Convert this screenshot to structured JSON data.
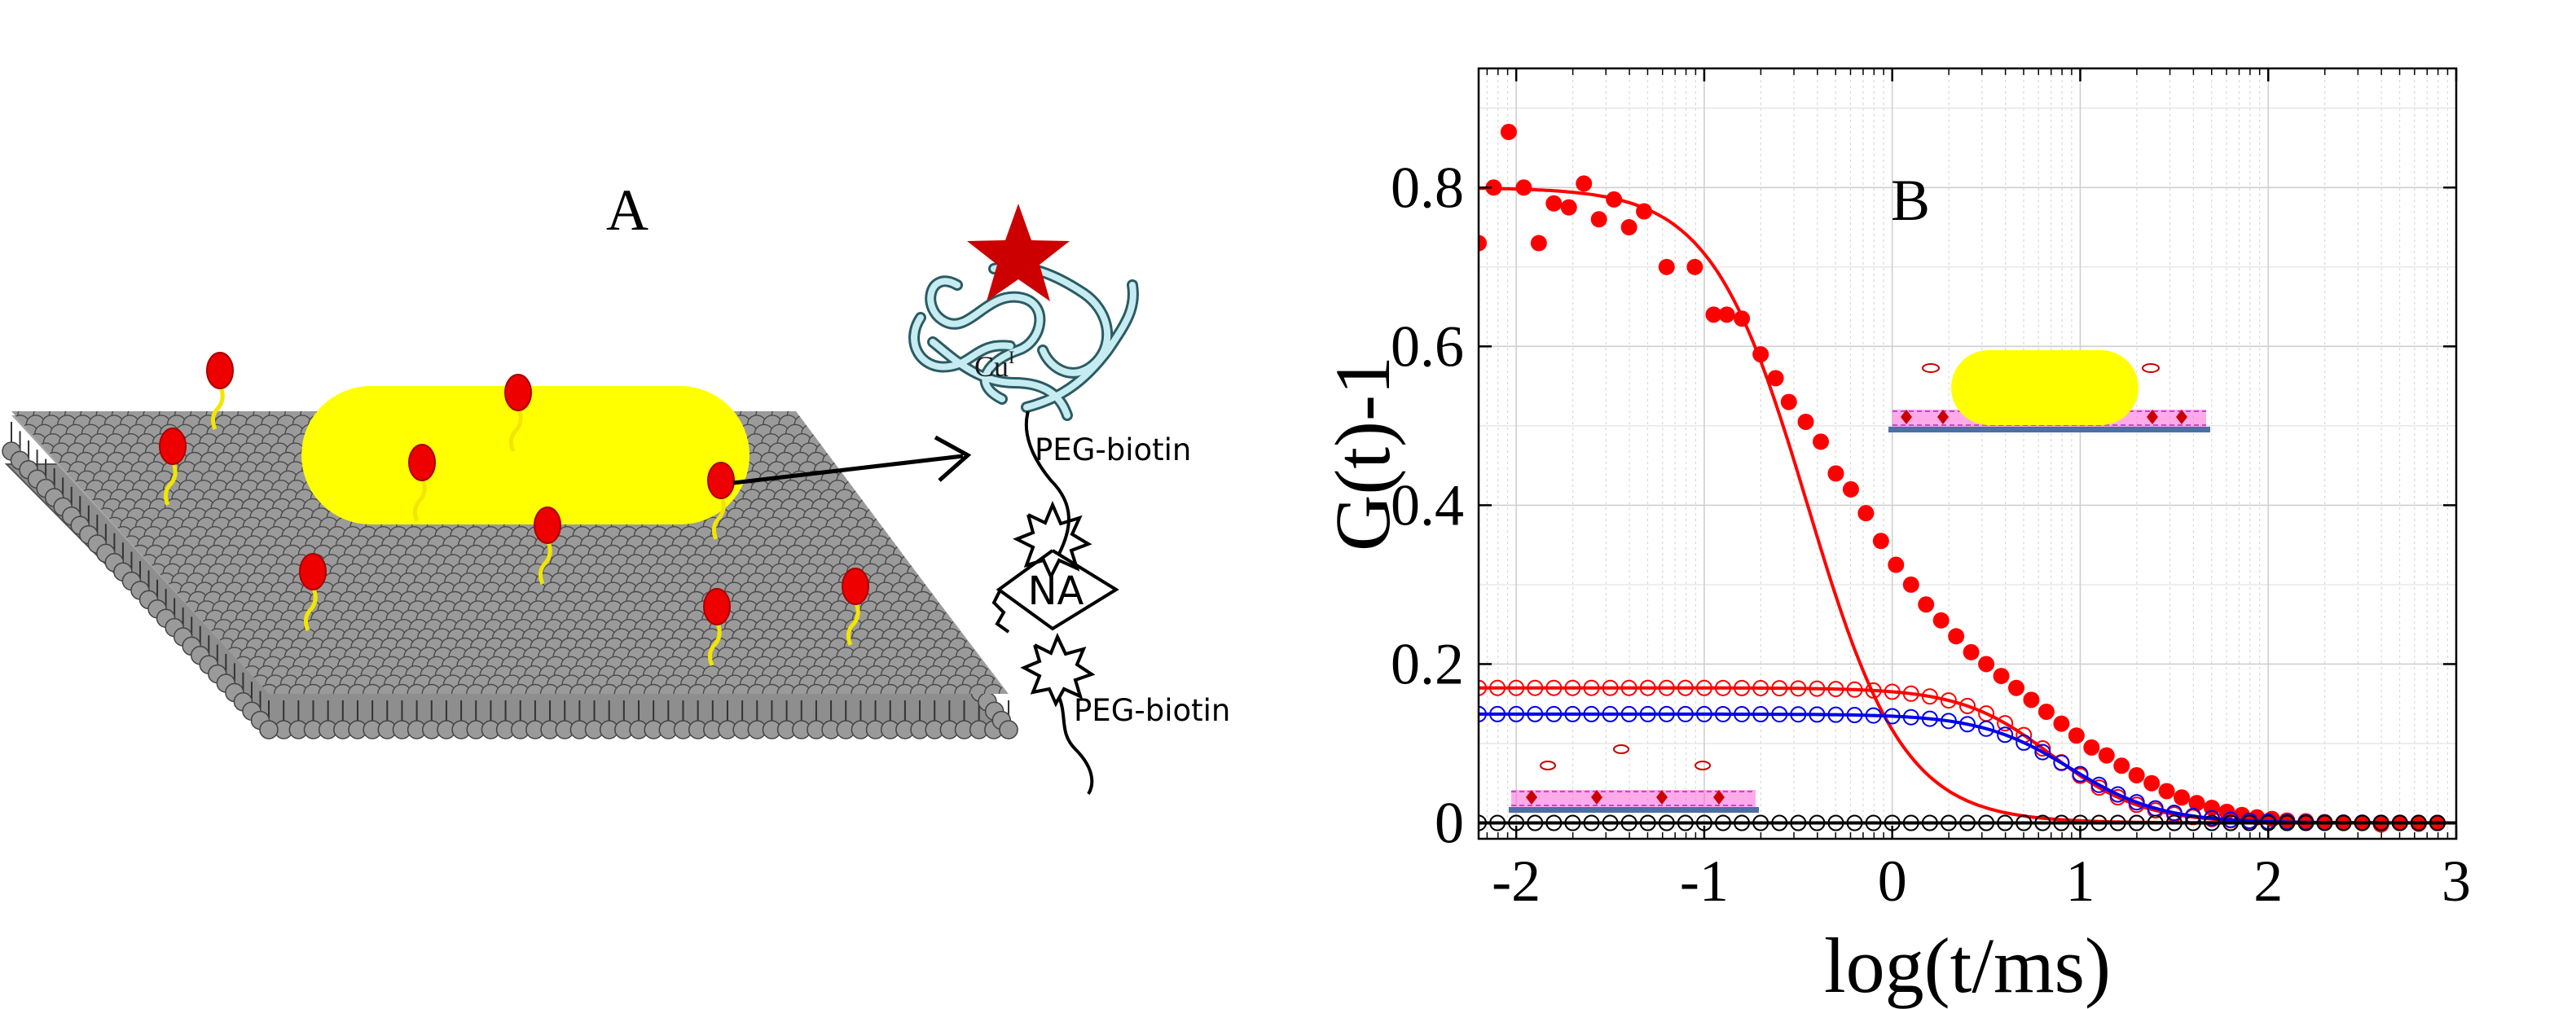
{
  "panel_a": {
    "label": "A",
    "protein_label": "Cu",
    "protein_label_sup": "I",
    "linker_top": "PEG-biotin",
    "linker_bottom": "PEG-biotin",
    "neutravidin": "NA",
    "colors": {
      "lipid_head": "#9a9a9a",
      "membrane_patch": "#ffff00",
      "protein_head": "#ee0000",
      "tether": "#f2e600",
      "star": "#cc0000",
      "ribbon": "#bfe8ee"
    }
  },
  "panel_b": {
    "label": "B"
  },
  "chart_data": {
    "type": "scatter",
    "title": "",
    "xlabel": "log(t/ms)",
    "ylabel": "G(t)-1",
    "xlim": [
      -2.2,
      3
    ],
    "ylim": [
      -0.02,
      0.95
    ],
    "xticks": [
      -2,
      -1,
      0,
      1,
      2,
      3
    ],
    "yticks": [
      0,
      0.2,
      0.4,
      0.6,
      0.8
    ],
    "grid": true,
    "minor_grid": true,
    "series": [
      {
        "marker": "filled-circle",
        "color": "#ff0000",
        "fit": {
          "amplitude": 0.8,
          "log_tau": -0.45,
          "k": 1.7
        },
        "points": [
          [
            -2.2,
            0.73
          ],
          [
            -2.12,
            0.8
          ],
          [
            -2.04,
            0.87
          ],
          [
            -1.96,
            0.8
          ],
          [
            -1.88,
            0.73
          ],
          [
            -1.8,
            0.78
          ],
          [
            -1.72,
            0.775
          ],
          [
            -1.64,
            0.805
          ],
          [
            -1.56,
            0.76
          ],
          [
            -1.48,
            0.785
          ],
          [
            -1.4,
            0.75
          ],
          [
            -1.32,
            0.77
          ],
          [
            -1.2,
            0.7
          ],
          [
            -1.05,
            0.7
          ],
          [
            -0.95,
            0.64
          ],
          [
            -0.88,
            0.64
          ],
          [
            -0.8,
            0.635
          ],
          [
            -0.7,
            0.59
          ],
          [
            -0.62,
            0.56
          ],
          [
            -0.55,
            0.53
          ],
          [
            -0.46,
            0.505
          ],
          [
            -0.38,
            0.48
          ],
          [
            -0.3,
            0.44
          ],
          [
            -0.22,
            0.42
          ],
          [
            -0.14,
            0.39
          ],
          [
            -0.06,
            0.355
          ],
          [
            0.02,
            0.325
          ],
          [
            0.1,
            0.3
          ],
          [
            0.18,
            0.275
          ],
          [
            0.26,
            0.255
          ],
          [
            0.34,
            0.235
          ],
          [
            0.42,
            0.215
          ],
          [
            0.5,
            0.2
          ],
          [
            0.58,
            0.185
          ],
          [
            0.66,
            0.17
          ],
          [
            0.74,
            0.155
          ],
          [
            0.82,
            0.14
          ],
          [
            0.9,
            0.125
          ],
          [
            0.98,
            0.11
          ],
          [
            1.06,
            0.095
          ],
          [
            1.14,
            0.085
          ],
          [
            1.22,
            0.072
          ],
          [
            1.3,
            0.06
          ],
          [
            1.38,
            0.05
          ],
          [
            1.46,
            0.04
          ],
          [
            1.54,
            0.032
          ],
          [
            1.62,
            0.025
          ],
          [
            1.7,
            0.019
          ],
          [
            1.78,
            0.014
          ],
          [
            1.86,
            0.01
          ],
          [
            1.94,
            0.007
          ],
          [
            2.02,
            0.005
          ],
          [
            2.1,
            0.003
          ],
          [
            2.2,
            0.002
          ],
          [
            2.3,
            0.001
          ],
          [
            2.4,
            0.0
          ],
          [
            2.5,
            0.0
          ],
          [
            2.6,
            -0.002
          ],
          [
            2.7,
            0.0
          ],
          [
            2.8,
            -0.001
          ],
          [
            2.9,
            0.0
          ]
        ]
      },
      {
        "marker": "open-circle",
        "color": "#ff0000",
        "fit": {
          "amplitude": 0.17,
          "log_tau": 0.85,
          "k": 1.8
        },
        "x_range": [
          -2.2,
          2.95
        ],
        "step": 0.1
      },
      {
        "marker": "open-circle",
        "color": "#0000ee",
        "fit": {
          "amplitude": 0.137,
          "log_tau": 0.95,
          "k": 1.8
        },
        "x_range": [
          -2.2,
          2.95
        ],
        "step": 0.1
      },
      {
        "marker": "open-circle",
        "color": "#000000",
        "fit": {
          "amplitude": 0.0,
          "log_tau": 0.0,
          "k": 1.0
        },
        "x_range": [
          -2.2,
          2.95
        ],
        "step": 0.1
      }
    ]
  }
}
